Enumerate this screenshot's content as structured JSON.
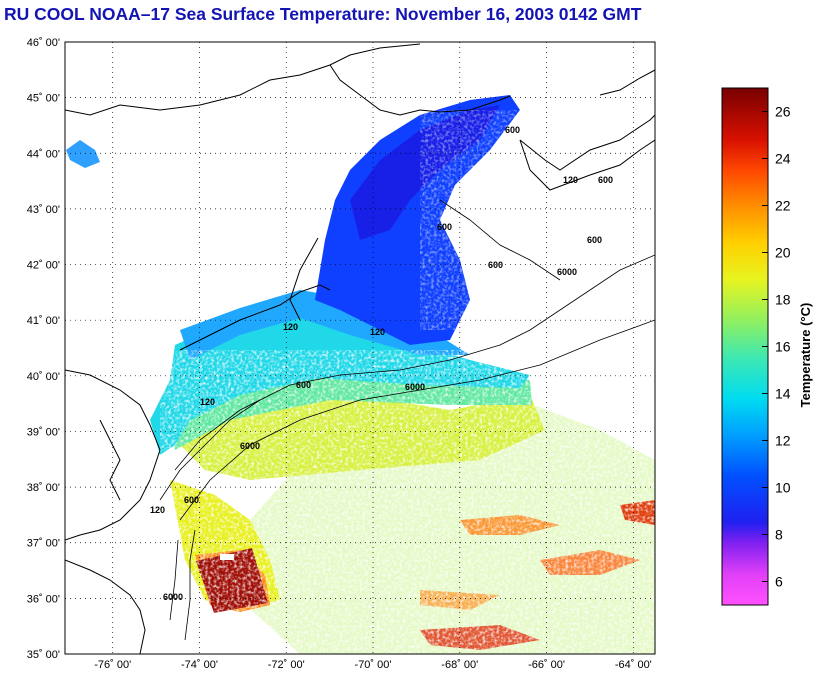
{
  "title": "RU COOL  NOAA–17  Sea Surface Temperature:  November 16, 2003 0142 GMT",
  "map": {
    "lat_labels": [
      "46˚ 00'",
      "45˚ 00'",
      "44˚ 00'",
      "43˚ 00'",
      "42˚ 00'",
      "41˚ 00'",
      "40˚ 00'",
      "39˚ 00'",
      "38˚ 00'",
      "37˚ 00'",
      "36˚ 00'",
      "35˚ 00'"
    ],
    "lon_labels": [
      "-76˚ 00'",
      "-74˚ 00'",
      "-72˚ 00'",
      "-70˚ 00'",
      "-68˚ 00'",
      "-66˚ 00'",
      "-64˚ 00'"
    ],
    "lat_range": [
      35,
      46
    ],
    "lon_range": [
      -77.1,
      -63.5
    ],
    "grid": "dotted",
    "contour_labels": [
      "600",
      "600",
      "600",
      "120",
      "600",
      "120",
      "6000",
      "600",
      "120",
      "6000",
      "600",
      "120",
      "600",
      "6000",
      "120",
      "6000"
    ]
  },
  "colorbar": {
    "label": "Temperature (°C)",
    "range": [
      5,
      27
    ],
    "ticks": [
      "6",
      "8",
      "10",
      "12",
      "14",
      "16",
      "18",
      "20",
      "22",
      "24",
      "26"
    ],
    "colors": [
      "#ff40ff",
      "#c020f0",
      "#4020f0",
      "#0040ff",
      "#00a0ff",
      "#00e0e0",
      "#40e8a0",
      "#a0f040",
      "#f0f020",
      "#ffb000",
      "#ff6000",
      "#e01000",
      "#a00000",
      "#800000"
    ]
  }
}
